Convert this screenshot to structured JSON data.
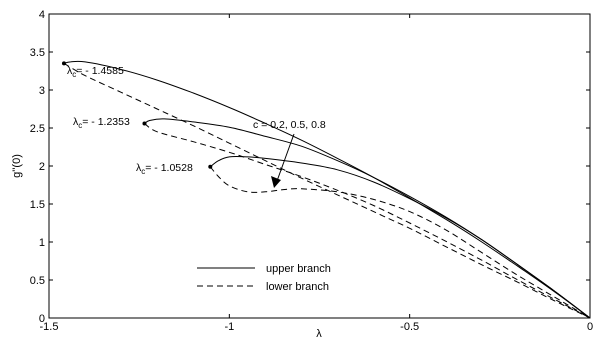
{
  "chart_data": {
    "type": "line",
    "title": "",
    "xlabel": "λ",
    "ylabel": "g''(0)",
    "xlim": [
      -1.5,
      0
    ],
    "ylim": [
      0,
      4
    ],
    "xticks": [
      "-1.5",
      "-1",
      "-0.5",
      "0"
    ],
    "yticks": [
      "0",
      "0.5",
      "1",
      "1.5",
      "2",
      "2.5",
      "3",
      "3.5",
      "4"
    ],
    "grid": false,
    "legend": {
      "placement": "lower-left",
      "entries": [
        {
          "label": "upper branch",
          "style": "solid"
        },
        {
          "label": "lower branch",
          "style": "dashed"
        }
      ]
    },
    "annotations": {
      "arrow_text": "c = 0.2, 0.5, 0.8",
      "critical_points": [
        {
          "text": "= - 1.4585",
          "x": -1.4585,
          "y": 3.35
        },
        {
          "text": "= - 1.2353",
          "x": -1.2353,
          "y": 2.56
        },
        {
          "text": "= - 1.0528",
          "x": -1.0528,
          "y": 1.99
        }
      ],
      "critical_symbol": "λ",
      "critical_subscript": "c"
    },
    "series": [
      {
        "style": "solid",
        "x": [
          -1.4585,
          -1.44,
          -1.4,
          -1.3,
          -1.2,
          -1.1,
          -1.0,
          -0.9,
          -0.8,
          -0.7,
          -0.6,
          -0.5,
          -0.4,
          -0.3,
          -0.2,
          -0.1,
          0
        ],
        "y": [
          3.35,
          3.37,
          3.37,
          3.27,
          3.13,
          2.96,
          2.77,
          2.56,
          2.34,
          2.1,
          1.85,
          1.58,
          1.3,
          1.0,
          0.68,
          0.35,
          0
        ]
      },
      {
        "style": "dashed",
        "x": [
          -1.4585,
          -1.4,
          -1.3,
          -1.2,
          -1.1,
          -1.0,
          -0.9,
          -0.8,
          -0.7,
          -0.6,
          -0.5,
          -0.4,
          -0.3,
          -0.2,
          -0.1,
          0
        ],
        "y": [
          3.35,
          3.19,
          2.97,
          2.75,
          2.53,
          2.3,
          2.07,
          1.84,
          1.62,
          1.4,
          1.18,
          0.94,
          0.7,
          0.47,
          0.23,
          0
        ]
      },
      {
        "style": "solid",
        "x": [
          -1.2353,
          -1.22,
          -1.18,
          -1.1,
          -1.0,
          -0.9,
          -0.8,
          -0.7,
          -0.6,
          -0.5,
          -0.4,
          -0.3,
          -0.2,
          -0.1,
          0
        ],
        "y": [
          2.56,
          2.6,
          2.62,
          2.58,
          2.51,
          2.39,
          2.26,
          2.07,
          1.85,
          1.6,
          1.33,
          1.03,
          0.7,
          0.36,
          0
        ]
      },
      {
        "style": "dashed",
        "x": [
          -1.2353,
          -1.2,
          -1.1,
          -1.0,
          -0.9,
          -0.8,
          -0.7,
          -0.6,
          -0.5,
          -0.4,
          -0.3,
          -0.2,
          -0.1,
          0
        ],
        "y": [
          2.56,
          2.45,
          2.32,
          2.18,
          2.02,
          1.86,
          1.68,
          1.48,
          1.25,
          1.01,
          0.76,
          0.5,
          0.25,
          0
        ]
      },
      {
        "style": "solid",
        "x": [
          -1.0528,
          -1.03,
          -1.0,
          -0.95,
          -0.9,
          -0.8,
          -0.7,
          -0.6,
          -0.5,
          -0.4,
          -0.3,
          -0.2,
          -0.1,
          0
        ],
        "y": [
          1.99,
          2.07,
          2.12,
          2.12,
          2.1,
          2.04,
          1.95,
          1.79,
          1.57,
          1.32,
          1.03,
          0.7,
          0.36,
          0
        ]
      },
      {
        "style": "dashed",
        "x": [
          -1.0528,
          -1.03,
          -1.0,
          -0.95,
          -0.9,
          -0.85,
          -0.8,
          -0.7,
          -0.6,
          -0.5,
          -0.4,
          -0.3,
          -0.2,
          -0.1,
          0
        ],
        "y": [
          1.99,
          1.86,
          1.74,
          1.66,
          1.66,
          1.69,
          1.7,
          1.66,
          1.56,
          1.4,
          1.16,
          0.86,
          0.56,
          0.28,
          0
        ]
      }
    ]
  }
}
